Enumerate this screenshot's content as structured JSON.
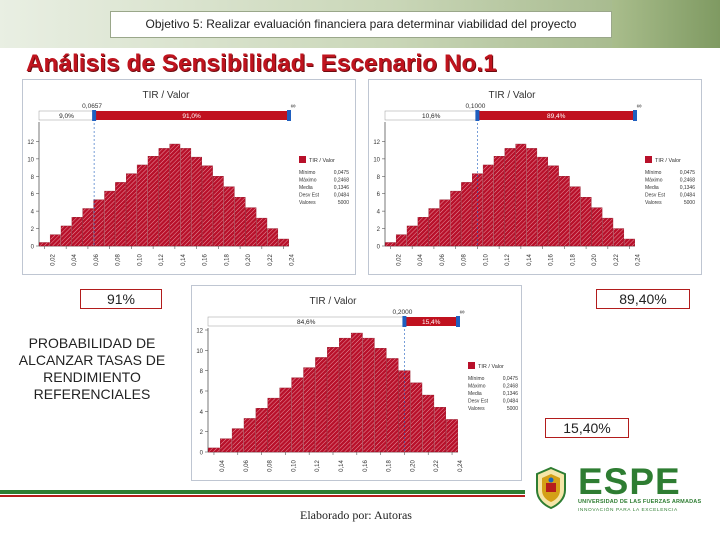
{
  "header": {
    "objective": "Objetivo 5: Realizar evaluación financiera para determinar viabilidad del proyecto"
  },
  "title": "Análisis de Sensibilidad- Escenario No.1",
  "colors": {
    "bar": "#b8102a",
    "marker": "#c0111f",
    "title": "#c0141e"
  },
  "chart_data": [
    {
      "type": "bar",
      "title": "TIR / Valor",
      "x": [
        0.02,
        0.03,
        0.04,
        0.05,
        0.06,
        0.07,
        0.08,
        0.09,
        0.1,
        0.11,
        0.12,
        0.13,
        0.14,
        0.15,
        0.16,
        0.17,
        0.18,
        0.19,
        0.2,
        0.21,
        0.22,
        0.23,
        0.24
      ],
      "values": [
        0.4,
        1.3,
        2.3,
        3.3,
        4.3,
        5.3,
        6.3,
        7.3,
        8.3,
        9.3,
        10.3,
        11.2,
        11.7,
        11.2,
        10.2,
        9.2,
        8.0,
        6.8,
        5.6,
        4.4,
        3.2,
        2.0,
        0.8
      ],
      "ylim": [
        0,
        14
      ],
      "yticks": [
        0,
        2,
        4,
        6,
        8,
        10,
        12
      ],
      "xticks": [
        "0,02",
        "0,04",
        "0,06",
        "0,08",
        "0,10",
        "0,12",
        "0,14",
        "0,16",
        "0,18",
        "0,20",
        "0,22",
        "0,24"
      ],
      "slider": {
        "left_label": "9,0%",
        "right_label": "91,0%",
        "value": "0,0657",
        "max": "∞"
      },
      "legend_title": "TIR / Valor",
      "stats": [
        {
          "label": "Mínimo",
          "value": "0,0475"
        },
        {
          "label": "Máximo",
          "value": "0,2468"
        },
        {
          "label": "Media",
          "value": "0,1346"
        },
        {
          "label": "Desv Est",
          "value": "0,0484"
        },
        {
          "label": "Valores",
          "value": "5000"
        }
      ]
    },
    {
      "type": "bar",
      "title": "TIR / Valor",
      "x": [
        0.02,
        0.03,
        0.04,
        0.05,
        0.06,
        0.07,
        0.08,
        0.09,
        0.1,
        0.11,
        0.12,
        0.13,
        0.14,
        0.15,
        0.16,
        0.17,
        0.18,
        0.19,
        0.2,
        0.21,
        0.22,
        0.23,
        0.24
      ],
      "values": [
        0.4,
        1.3,
        2.3,
        3.3,
        4.3,
        5.3,
        6.3,
        7.3,
        8.3,
        9.3,
        10.3,
        11.2,
        11.7,
        11.2,
        10.2,
        9.2,
        8.0,
        6.8,
        5.6,
        4.4,
        3.2,
        2.0,
        0.8
      ],
      "ylim": [
        0,
        14
      ],
      "yticks": [
        0,
        2,
        4,
        6,
        8,
        10,
        12
      ],
      "xticks": [
        "0,02",
        "0,04",
        "0,06",
        "0,08",
        "0,10",
        "0,12",
        "0,14",
        "0,16",
        "0,18",
        "0,20",
        "0,22",
        "0,24"
      ],
      "slider": {
        "left_label": "10,6%",
        "right_label": "89,4%",
        "value": "0,1000",
        "max": "∞"
      },
      "legend_title": "TIR / Valor",
      "stats": [
        {
          "label": "Mínimo",
          "value": "0,0475"
        },
        {
          "label": "Máximo",
          "value": "0,2468"
        },
        {
          "label": "Media",
          "value": "0,1346"
        },
        {
          "label": "Desv Est",
          "value": "0,0484"
        },
        {
          "label": "Valores",
          "value": "5000"
        }
      ]
    },
    {
      "type": "bar",
      "title": "TIR / Valor",
      "x": [
        0.04,
        0.05,
        0.06,
        0.07,
        0.08,
        0.09,
        0.1,
        0.11,
        0.12,
        0.13,
        0.14,
        0.15,
        0.16,
        0.17,
        0.18,
        0.19,
        0.2,
        0.21,
        0.22,
        0.23,
        0.24
      ],
      "values": [
        0.4,
        1.3,
        2.3,
        3.3,
        4.3,
        5.3,
        6.3,
        7.3,
        8.3,
        9.3,
        10.3,
        11.2,
        11.7,
        11.2,
        10.2,
        9.2,
        8.0,
        6.8,
        5.6,
        4.4,
        3.2
      ],
      "ylim": [
        0,
        12
      ],
      "yticks": [
        0,
        2,
        4,
        6,
        8,
        10,
        12
      ],
      "xticks": [
        "0,04",
        "0,06",
        "0,08",
        "0,10",
        "0,12",
        "0,14",
        "0,16",
        "0,18",
        "0,20",
        "0,22",
        "0,24"
      ],
      "slider": {
        "left_label": "84,6%",
        "right_label": "15,4%",
        "value": "0,2000",
        "max": "∞"
      },
      "legend_title": "TIR / Valor",
      "stats": [
        {
          "label": "Mínimo",
          "value": "0,0475"
        },
        {
          "label": "Máximo",
          "value": "0,2468"
        },
        {
          "label": "Media",
          "value": "0,1346"
        },
        {
          "label": "Desv Est",
          "value": "0,0484"
        },
        {
          "label": "Valores",
          "value": "5000"
        }
      ]
    }
  ],
  "percent_labels": {
    "p91": "91%",
    "p894": "89,40%",
    "p154": "15,40%"
  },
  "probability_text": "PROBABILIDAD DE ALCANZAR TASAS DE RENDIMIENTO REFERENCIALES",
  "credit": "Elaborado por: Autoras",
  "logo": {
    "name": "ESPE",
    "subtitle": "UNIVERSIDAD DE LAS FUERZAS ARMADAS",
    "motto": "INNOVACIÓN PARA LA EXCELENCIA"
  }
}
